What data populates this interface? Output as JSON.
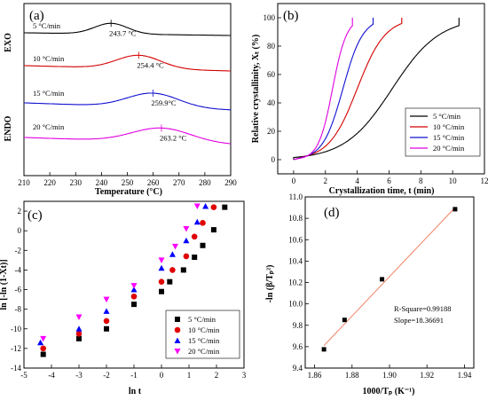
{
  "chart_data": [
    {
      "panel": "(a)",
      "type": "line",
      "xlabel": "Temperature (°C)",
      "ylabel_top": "EXO",
      "ylabel_bottom": "ENDO",
      "xlim": [
        210,
        290
      ],
      "xticks": [
        210,
        220,
        230,
        240,
        250,
        260,
        270,
        280,
        290
      ],
      "series": [
        {
          "name": "5 °C/min",
          "color": "#000000",
          "peak_label": "243.7 °C",
          "peak": 243.7
        },
        {
          "name": "10 °C/min",
          "color": "#d40000",
          "peak_label": "254.4 °C",
          "peak": 254.4
        },
        {
          "name": "15 °C/min",
          "color": "#1010d0",
          "peak_label": "259.9°C",
          "peak": 259.9
        },
        {
          "name": "20 °C/min",
          "color": "#e000e0",
          "peak_label": "263.2 °C",
          "peak": 263.2
        }
      ]
    },
    {
      "panel": "(b)",
      "type": "line",
      "xlabel": "Crystallization time, t (min)",
      "ylabel": "Relative crystallinity, Xₜ (%)",
      "xlim": [
        -1,
        12
      ],
      "ylim": [
        -10,
        110
      ],
      "xticks": [
        0,
        2,
        4,
        6,
        8,
        10,
        12
      ],
      "yticks": [
        0,
        20,
        40,
        60,
        80,
        100
      ],
      "legend_position": "bottom-right",
      "series": [
        {
          "name": "5 °C/min",
          "color": "#000000",
          "t_start": 0,
          "t_end": 10.4
        },
        {
          "name": "10 °C/min",
          "color": "#d40000",
          "t_start": 0.6,
          "t_end": 6.8
        },
        {
          "name": "15 °C/min",
          "color": "#1010d0",
          "t_start": 0.6,
          "t_end": 5.0
        },
        {
          "name": "20 °C/min",
          "color": "#e000e0",
          "t_start": 0.6,
          "t_end": 3.7
        }
      ]
    },
    {
      "panel": "(c)",
      "type": "scatter",
      "xlabel": "ln t",
      "ylabel": "ln [-ln (1-Xt)]",
      "xlim": [
        -5,
        3
      ],
      "ylim": [
        -14,
        3
      ],
      "xticks": [
        -5,
        -4,
        -3,
        -2,
        -1,
        0,
        1,
        2,
        3
      ],
      "yticks": [
        -14,
        -12,
        -10,
        -8,
        -6,
        -4,
        -2,
        0,
        2
      ],
      "legend_position": "bottom-right",
      "series": [
        {
          "name": "5 °C/min",
          "color": "#000000",
          "marker": "square",
          "x": [
            -4.3,
            -3.0,
            -2.0,
            -1.0,
            0.0,
            0.3,
            0.8,
            1.2,
            1.5,
            1.9,
            2.3
          ],
          "y": [
            -12.6,
            -11.0,
            -10.0,
            -7.5,
            -6.2,
            -5.2,
            -4.0,
            -2.7,
            -1.5,
            0.1,
            2.4
          ]
        },
        {
          "name": "10 °C/min",
          "color": "#e00000",
          "marker": "circle",
          "x": [
            -4.3,
            -3.0,
            -2.0,
            -1.0,
            0.0,
            0.4,
            0.9,
            1.2,
            1.5,
            1.9
          ],
          "y": [
            -12.0,
            -10.5,
            -9.2,
            -6.7,
            -5.2,
            -4.0,
            -2.6,
            -0.6,
            0.8,
            2.4
          ]
        },
        {
          "name": "15 °C/min",
          "color": "#0000ff",
          "marker": "triangle-up",
          "x": [
            -4.4,
            -3.0,
            -2.0,
            -1.0,
            0.0,
            0.4,
            0.9,
            1.3,
            1.6
          ],
          "y": [
            -11.4,
            -10.0,
            -8.2,
            -6.0,
            -3.8,
            -2.4,
            -1.0,
            0.9,
            2.5
          ]
        },
        {
          "name": "20 °C/min",
          "color": "#ff00ff",
          "marker": "triangle-down",
          "x": [
            -4.3,
            -3.0,
            -2.0,
            -1.0,
            0.0,
            0.5,
            0.9,
            1.3
          ],
          "y": [
            -11.0,
            -8.8,
            -7.0,
            -5.6,
            -3.0,
            -1.6,
            0.2,
            2.5
          ]
        }
      ]
    },
    {
      "panel": "(d)",
      "type": "scatter",
      "xlabel": "1000/Tₚ (K⁻¹)",
      "ylabel": "-ln (β/Tₚ²)",
      "xlim": [
        1.855,
        1.945
      ],
      "ylim": [
        9.4,
        11.0
      ],
      "xticks": [
        1.86,
        1.88,
        1.9,
        1.92,
        1.94
      ],
      "yticks": [
        9.4,
        9.6,
        9.8,
        10.0,
        10.2,
        10.4,
        10.6,
        10.8,
        11.0
      ],
      "points": {
        "x": [
          1.865,
          1.876,
          1.896,
          1.935
        ],
        "y": [
          9.575,
          9.85,
          10.23,
          10.885
        ]
      },
      "fit_line": {
        "x": [
          1.865,
          1.935
        ],
        "y": [
          9.61,
          10.9
        ],
        "color": "#f08060"
      },
      "annotation_1": "R-Square=0.99188",
      "annotation_2": "Slope=18.36691"
    }
  ]
}
